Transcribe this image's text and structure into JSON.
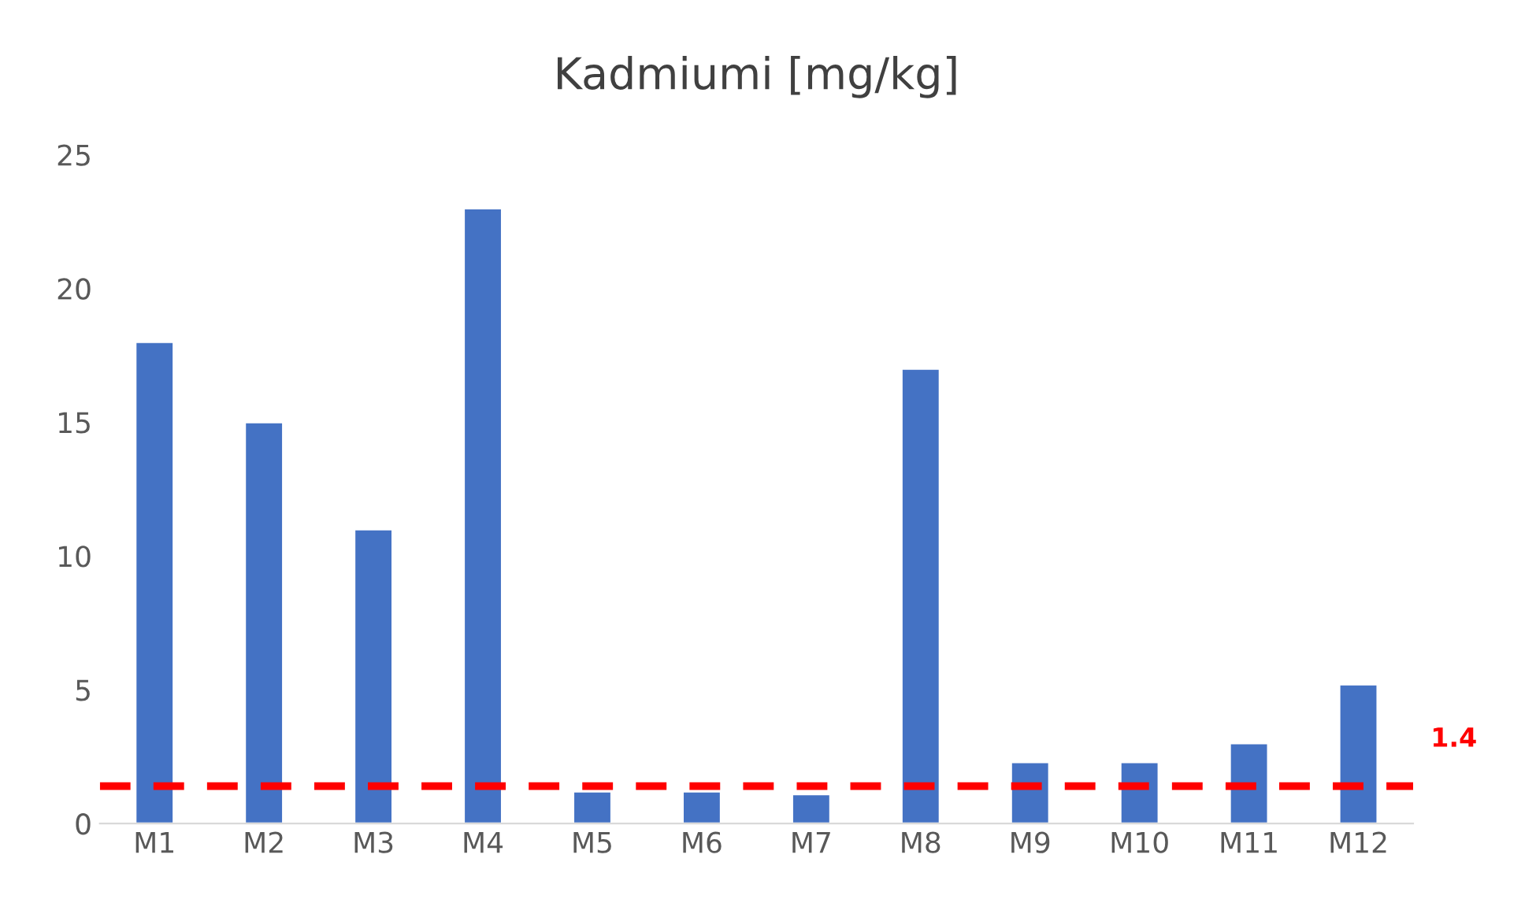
{
  "chart_data": {
    "type": "bar",
    "title": "Kadmiumi [mg/kg]",
    "categories": [
      "M1",
      "M2",
      "M3",
      "M4",
      "M5",
      "M6",
      "M7",
      "M8",
      "M9",
      "M10",
      "M11",
      "M12"
    ],
    "values": [
      18,
      15,
      11,
      23,
      1.2,
      1.2,
      1.1,
      17,
      2.3,
      2.3,
      3.0,
      5.2
    ],
    "color": "#4472c4",
    "ylim": [
      0,
      25
    ],
    "yticks": [
      0,
      5,
      10,
      15,
      20,
      25
    ],
    "grid": false,
    "legend": false,
    "ref_lines": [
      {
        "axis": "y",
        "value": 1.4,
        "label": "1.4",
        "color": "#ff0000",
        "line_style": "dashed"
      }
    ]
  }
}
